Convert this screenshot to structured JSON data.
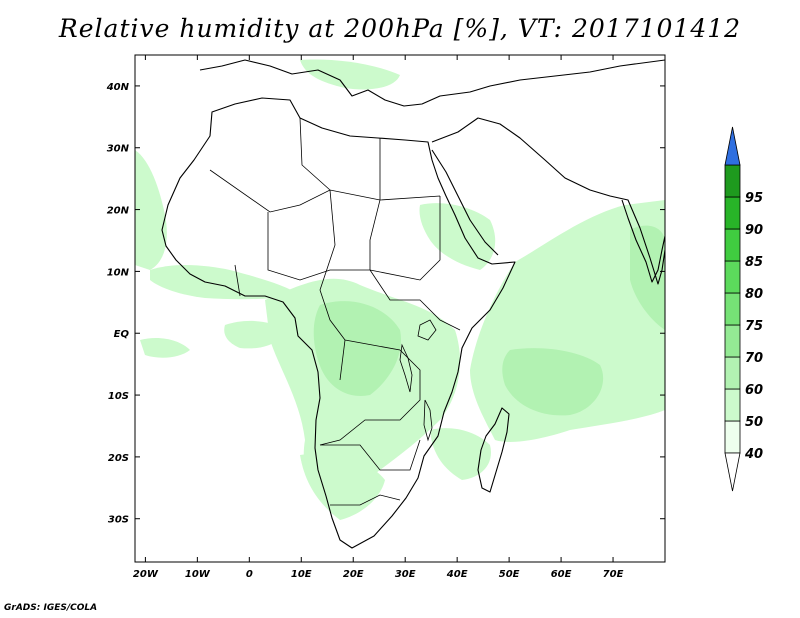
{
  "title": "Relative humidity at 200hPa [%], VT: 2017101412",
  "credit": "GrADS: IGES/COLA",
  "map": {
    "lon_range": [
      -22,
      80
    ],
    "lat_range": [
      -37,
      45
    ],
    "lon_ticks": [
      {
        "value": -20,
        "label": "20W"
      },
      {
        "value": -10,
        "label": "10W"
      },
      {
        "value": 0,
        "label": "0"
      },
      {
        "value": 10,
        "label": "10E"
      },
      {
        "value": 20,
        "label": "20E"
      },
      {
        "value": 30,
        "label": "30E"
      },
      {
        "value": 40,
        "label": "40E"
      },
      {
        "value": 50,
        "label": "50E"
      },
      {
        "value": 60,
        "label": "60E"
      },
      {
        "value": 70,
        "label": "70E"
      }
    ],
    "lat_ticks": [
      {
        "value": 40,
        "label": "40N"
      },
      {
        "value": 30,
        "label": "30N"
      },
      {
        "value": 20,
        "label": "20N"
      },
      {
        "value": 10,
        "label": "10N"
      },
      {
        "value": 0,
        "label": "EQ"
      },
      {
        "value": -10,
        "label": "10S"
      },
      {
        "value": -20,
        "label": "20S"
      },
      {
        "value": -30,
        "label": "30S"
      }
    ]
  },
  "colorbar": {
    "levels": [
      {
        "label": "40",
        "color": "#eeffee"
      },
      {
        "label": "50",
        "color": "#ccfacc"
      },
      {
        "label": "60",
        "color": "#b2f2b2"
      },
      {
        "label": "70",
        "color": "#94ea94"
      },
      {
        "label": "75",
        "color": "#76e276"
      },
      {
        "label": "80",
        "color": "#5cda5c"
      },
      {
        "label": "85",
        "color": "#40cc40"
      },
      {
        "label": "90",
        "color": "#28b428"
      },
      {
        "label": "95",
        "color": "#1e9a1e"
      }
    ],
    "under_color": "#ffffff",
    "over_color": "#2f6fe0"
  },
  "colors": {
    "land_outline": "#000000",
    "humid_light": "#ccfacc",
    "humid_mid": "#b2f2b2"
  }
}
